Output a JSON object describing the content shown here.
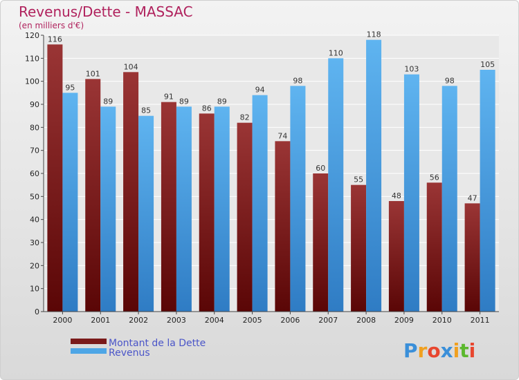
{
  "chart_data": {
    "type": "bar",
    "title": "Revenus/Dette - MASSAC",
    "subtitle": "(en milliers d'€)",
    "categories": [
      "2000",
      "2001",
      "2002",
      "2003",
      "2004",
      "2005",
      "2006",
      "2007",
      "2008",
      "2009",
      "2010",
      "2011"
    ],
    "series": [
      {
        "name": "Montant de la Dette",
        "color": "#7a1a1a",
        "values": [
          116,
          101,
          104,
          91,
          86,
          82,
          74,
          60,
          55,
          48,
          56,
          47
        ]
      },
      {
        "name": "Revenus",
        "color": "#4ea6e6",
        "values": [
          95,
          89,
          85,
          89,
          89,
          94,
          98,
          110,
          118,
          103,
          98,
          105
        ]
      }
    ],
    "ylim": [
      0,
      120
    ],
    "yticks": [
      0,
      10,
      20,
      30,
      40,
      50,
      60,
      70,
      80,
      90,
      100,
      110,
      120
    ],
    "grid": true,
    "legend": "bottom-left"
  },
  "logo": {
    "letters": [
      "P",
      "r",
      "o",
      "x",
      "i",
      "t",
      "i"
    ],
    "colors": [
      "#3a8fd9",
      "#f0a020",
      "#e8462e",
      "#3a8fd9",
      "#f0a020",
      "#5cb82e",
      "#e8462e"
    ]
  }
}
